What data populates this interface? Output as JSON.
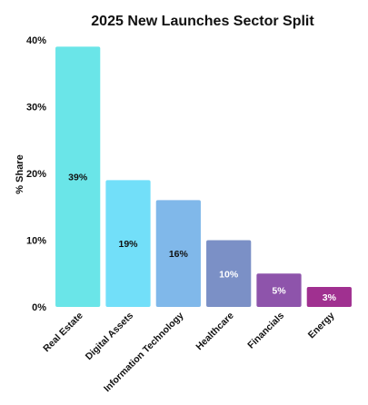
{
  "chart_data": {
    "type": "bar",
    "title": "2025 New Launches Sector Split",
    "xlabel": "",
    "ylabel": "% Share",
    "ylim": [
      0,
      40
    ],
    "yticks": [
      "0%",
      "10%",
      "20%",
      "30%",
      "40%"
    ],
    "grid": false,
    "categories": [
      "Real Estate",
      "Digital Assets",
      "Information Technology",
      "Healthcare",
      "Financials",
      "Energy"
    ],
    "values": [
      39,
      19,
      16,
      10,
      5,
      3
    ],
    "data_labels": [
      "39%",
      "19%",
      "16%",
      "10%",
      "5%",
      "3%"
    ],
    "colors": [
      "#6ae5e8",
      "#72dff9",
      "#80b8ea",
      "#7b90c6",
      "#8e54ab",
      "#a03090"
    ],
    "label_colors": [
      "#111111",
      "#111111",
      "#111111",
      "#ffffff",
      "#ffffff",
      "#ffffff"
    ]
  }
}
